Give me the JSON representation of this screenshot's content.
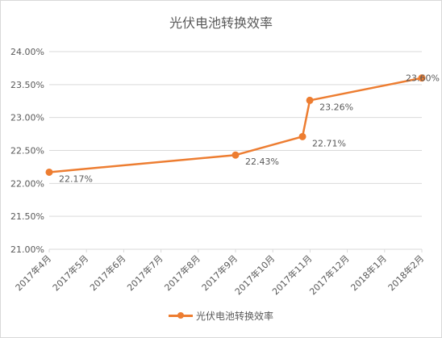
{
  "chart_data": {
    "type": "line",
    "title": "光伏电池转换效率",
    "x": [
      "2017-04-01",
      "2017-09-01",
      "2017-10-26",
      "2017-11-01",
      "2018-02-01"
    ],
    "x_tick_labels": [
      "2017年4月",
      "2017年5月",
      "2017年6月",
      "2017年7月",
      "2017年8月",
      "2017年9月",
      "2017年10月",
      "2017年11月",
      "2017年12月",
      "2018年1月",
      "2018年2月"
    ],
    "series": [
      {
        "name": "光伏电池转换效率",
        "values": [
          22.17,
          22.43,
          22.71,
          23.26,
          23.6
        ],
        "data_labels": [
          "22.17%",
          "22.43%",
          "22.71%",
          "23.26%",
          "23.60%"
        ],
        "color": "#ed7d31"
      }
    ],
    "y_tick_labels": [
      "21.00%",
      "21.50%",
      "22.00%",
      "22.50%",
      "23.00%",
      "23.50%",
      "24.00%"
    ],
    "ylim": [
      21.0,
      24.0
    ],
    "xlim": [
      "2017-04-01",
      "2018-02-01"
    ],
    "xlabel": "",
    "ylabel": "",
    "grid": true,
    "legend": "bottom"
  },
  "colors": {
    "series": "#ed7d31",
    "grid": "#d9d9d9",
    "text": "#595959"
  }
}
